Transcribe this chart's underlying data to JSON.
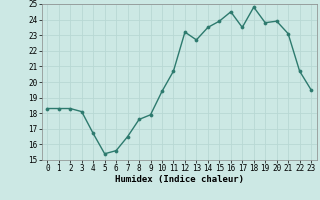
{
  "x": [
    0,
    1,
    2,
    3,
    4,
    5,
    6,
    7,
    8,
    9,
    10,
    11,
    12,
    13,
    14,
    15,
    16,
    17,
    18,
    19,
    20,
    21,
    22,
    23
  ],
  "y": [
    18.3,
    18.3,
    18.3,
    18.1,
    16.7,
    15.4,
    15.6,
    16.5,
    17.6,
    17.9,
    19.4,
    20.7,
    23.2,
    22.7,
    23.5,
    23.9,
    24.5,
    23.5,
    24.8,
    23.8,
    23.9,
    23.1,
    20.7,
    19.5
  ],
  "xlabel": "Humidex (Indice chaleur)",
  "ylim": [
    15,
    25
  ],
  "xlim_min": -0.5,
  "xlim_max": 23.5,
  "yticks": [
    15,
    16,
    17,
    18,
    19,
    20,
    21,
    22,
    23,
    24,
    25
  ],
  "xticks": [
    0,
    1,
    2,
    3,
    4,
    5,
    6,
    7,
    8,
    9,
    10,
    11,
    12,
    13,
    14,
    15,
    16,
    17,
    18,
    19,
    20,
    21,
    22,
    23
  ],
  "line_color": "#2d7a6e",
  "marker_color": "#2d7a6e",
  "bg_color": "#cce8e4",
  "grid_color": "#b8d8d4",
  "label_fontsize": 6.0,
  "tick_fontsize": 5.5,
  "xlabel_fontsize": 6.5,
  "linewidth": 1.0,
  "markersize": 2.2
}
